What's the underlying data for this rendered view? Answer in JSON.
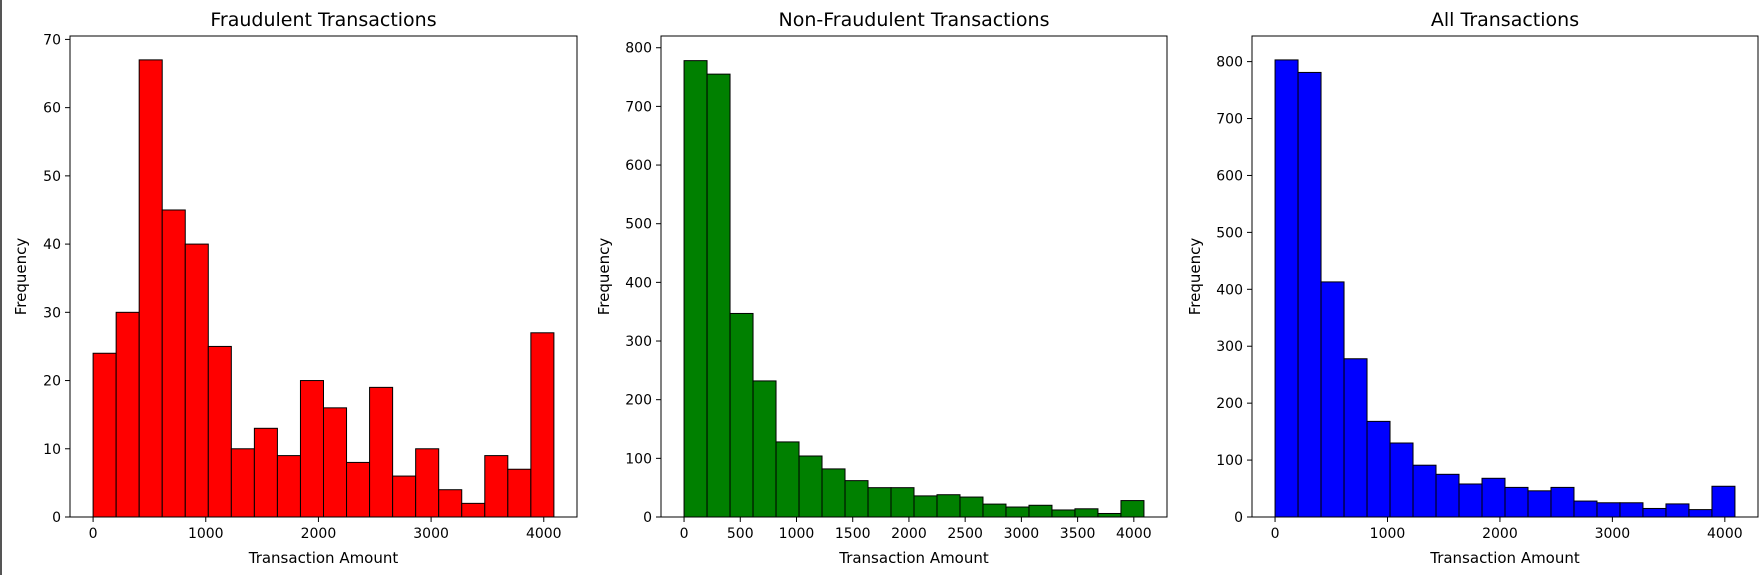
{
  "chart_data": [
    {
      "type": "bar",
      "title": "Fraudulent Transactions",
      "xlabel": "Transaction Amount",
      "ylabel": "Frequency",
      "color": "#ff0000",
      "edge_color": "#000000",
      "bin_edges": [
        0,
        204.5,
        409,
        613.5,
        818,
        1022.5,
        1227,
        1431.5,
        1636,
        1840.5,
        2045,
        2249.5,
        2454,
        2658.5,
        2863,
        3067.5,
        3272,
        3476.5,
        3681,
        3885.5,
        4090
      ],
      "values": [
        24,
        30,
        67,
        45,
        40,
        25,
        10,
        13,
        9,
        20,
        16,
        8,
        19,
        6,
        10,
        4,
        2,
        9,
        7,
        27
      ],
      "xlim": [
        -205,
        4295
      ],
      "ylim": [
        0,
        70.5
      ],
      "xticks": [
        0,
        1000,
        2000,
        3000,
        4000
      ],
      "yticks": [
        0,
        10,
        20,
        30,
        40,
        50,
        60,
        70
      ],
      "grid": false
    },
    {
      "type": "bar",
      "title": "Non-Fraudulent Transactions",
      "xlabel": "Transaction Amount",
      "ylabel": "Frequency",
      "color": "#008000",
      "edge_color": "#000000",
      "bin_edges": [
        0,
        204.5,
        409,
        613.5,
        818,
        1022.5,
        1227,
        1431.5,
        1636,
        1840.5,
        2045,
        2249.5,
        2454,
        2658.5,
        2863,
        3067.5,
        3272,
        3476.5,
        3681,
        3885.5,
        4090
      ],
      "values": [
        778,
        755,
        347,
        232,
        128,
        104,
        82,
        62,
        50,
        50,
        36,
        38,
        34,
        22,
        17,
        20,
        12,
        14,
        6,
        28
      ],
      "xlim": [
        -205,
        4295
      ],
      "ylim": [
        0,
        820
      ],
      "xticks": [
        0,
        500,
        1000,
        1500,
        2000,
        2500,
        3000,
        3500,
        4000
      ],
      "yticks": [
        0,
        100,
        200,
        300,
        400,
        500,
        600,
        700,
        800
      ],
      "grid": false
    },
    {
      "type": "bar",
      "title": "All Transactions",
      "xlabel": "Transaction Amount",
      "ylabel": "Frequency",
      "color": "#0000ff",
      "edge_color": "#000000",
      "bin_edges": [
        0,
        204.5,
        409,
        613.5,
        818,
        1022.5,
        1227,
        1431.5,
        1636,
        1840.5,
        2045,
        2249.5,
        2454,
        2658.5,
        2863,
        3067.5,
        3272,
        3476.5,
        3681,
        3885.5,
        4090
      ],
      "values": [
        803,
        781,
        413,
        278,
        168,
        130,
        91,
        75,
        58,
        68,
        52,
        46,
        52,
        28,
        25,
        25,
        15,
        23,
        13,
        54
      ],
      "xlim": [
        -205,
        4295
      ],
      "ylim": [
        0,
        845
      ],
      "xticks": [
        0,
        1000,
        2000,
        3000,
        4000
      ],
      "yticks": [
        0,
        100,
        200,
        300,
        400,
        500,
        600,
        700,
        800
      ],
      "grid": false
    }
  ]
}
